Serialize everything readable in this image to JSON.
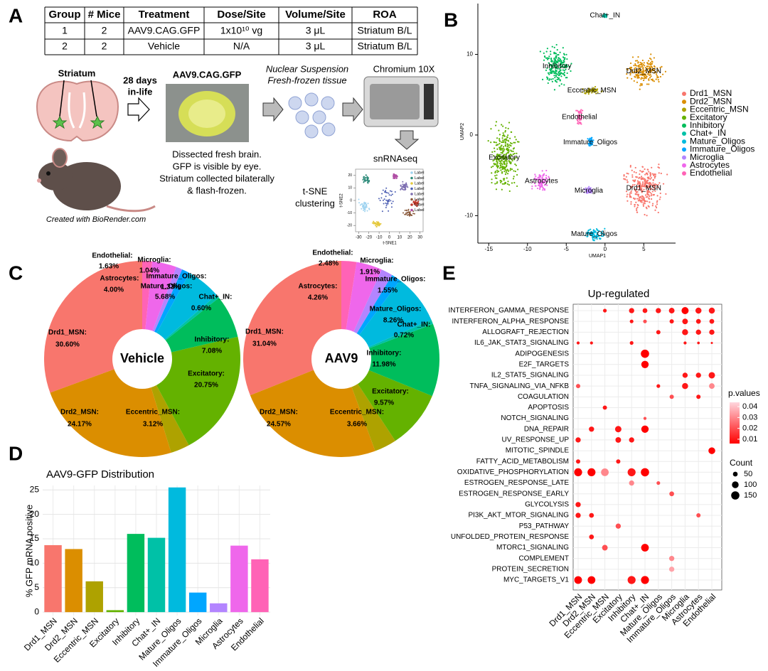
{
  "panel_labels": [
    "A",
    "B",
    "C",
    "D",
    "E"
  ],
  "table": {
    "header": [
      "Group",
      "# Mice",
      "Treatment",
      "Dose/Site",
      "Volume/Site",
      "ROA"
    ],
    "rows": [
      [
        "1",
        "2",
        "AAV9.CAG.GFP",
        "1x10¹⁰ vg",
        "3 μL",
        "Striatum B/L"
      ],
      [
        "2",
        "2",
        "Vehicle",
        "N/A",
        "3 μL",
        "Striatum B/L"
      ]
    ]
  },
  "schematic": {
    "striatum": "Striatum",
    "days": [
      "28 days",
      "in-life"
    ],
    "vector": "AAV9.CAG.GFP",
    "dissection": [
      "Dissected fresh brain.",
      "GFP is visible by eye.",
      "Striatum collected bilaterally",
      "& flash-frozen."
    ],
    "credit": "Created with BioRender.com",
    "suspension": [
      "Nuclear Suspension",
      "Fresh-frozen tissue"
    ],
    "platform": "Chromium 10X",
    "assay": "snRNAseq",
    "clustering": [
      "t-SNE",
      "clustering"
    ]
  },
  "tsne_inset": {
    "xlabel": "t-SNE1",
    "ylabel": "t-SNE2",
    "xlim": [
      -33,
      33
    ],
    "ylim": [
      -25,
      25
    ],
    "xticks": [
      -30,
      -20,
      -10,
      0,
      10,
      20,
      30
    ],
    "yticks": [
      -20,
      -10,
      0,
      10,
      20
    ],
    "legend": [
      "Label",
      "Label",
      "Label",
      "Label",
      "Label",
      "Label",
      "Label",
      "Label"
    ],
    "colors": [
      "#9fd3f0",
      "#2e8b7a",
      "#e5c93d",
      "#4d5fb3",
      "#7c6db0",
      "#8a5a3c",
      "#c0392b",
      "#b04fa5"
    ]
  },
  "chart_data": [
    {
      "type": "scatter",
      "xlabel": "UMAP1",
      "ylabel": "UMAP2",
      "xlim": [
        -16.4,
        9.1
      ],
      "ylim": [
        -13.4,
        16.3
      ],
      "xticks": [
        -15,
        -10,
        -5,
        0,
        5
      ],
      "yticks": [
        -10,
        0,
        10
      ],
      "clusters": [
        {
          "name": "Drd1_MSN",
          "color": "#F8766D",
          "x": 5,
          "y": -6.6
        },
        {
          "name": "Drd2_MSN",
          "color": "#DB8E00",
          "x": 5,
          "y": 7.9
        },
        {
          "name": "Eccentric_MSN",
          "color": "#AEA200",
          "x": -1.7,
          "y": 5.5
        },
        {
          "name": "Excitatory",
          "color": "#64B200",
          "x": -13,
          "y": -2.8
        },
        {
          "name": "Inhibitory",
          "color": "#00BD5C",
          "x": -6.2,
          "y": 8.5
        },
        {
          "name": "Chat+_IN",
          "color": "#00C1A7",
          "x": 0,
          "y": 14.8
        },
        {
          "name": "Mature_Oligos",
          "color": "#00BADE",
          "x": -1.4,
          "y": -12.3
        },
        {
          "name": "Immature_Oligos",
          "color": "#00A6FF",
          "x": -1.9,
          "y": -0.9
        },
        {
          "name": "Microglia",
          "color": "#B385FF",
          "x": -2.1,
          "y": -6.9
        },
        {
          "name": "Astrocytes",
          "color": "#EF67EB",
          "x": -8.2,
          "y": -5.7
        },
        {
          "name": "Endothelial",
          "color": "#FF63B6",
          "x": -3.3,
          "y": 2.2
        }
      ]
    },
    {
      "type": "pie",
      "title": "Vehicle",
      "labels": [
        "Drd1_MSN:",
        "Drd2_MSN:",
        "Eccentric_MSN:",
        "Excitatory:",
        "Inhibitory:",
        "Chat+_IN:",
        "Mature_Oligos:",
        "Immature_Oligos:",
        "Microglia:",
        "Astrocytes:",
        "Endothelial:"
      ],
      "values": [
        30.6,
        24.17,
        3.12,
        20.75,
        7.08,
        0.6,
        5.68,
        1.33,
        1.04,
        4.0,
        1.63
      ],
      "value_labels": [
        "30.60%",
        "24.17%",
        "3.12%",
        "20.75%",
        "7.08%",
        "0.60%",
        "5.68%",
        "1.33%",
        "1.04%",
        "4.00%",
        "1.63%"
      ],
      "colors": [
        "#F8766D",
        "#DB8E00",
        "#AEA200",
        "#64B200",
        "#00BD5C",
        "#00C1A7",
        "#00BADE",
        "#00A6FF",
        "#B385FF",
        "#EF67EB",
        "#FF63B6"
      ]
    },
    {
      "type": "pie",
      "title": "AAV9",
      "labels": [
        "Drd1_MSN:",
        "Drd2_MSN:",
        "Eccentric_MSN:",
        "Excitatory:",
        "Inhibitory:",
        "Chat+_IN:",
        "Mature_Oligos:",
        "Immature_Oligos:",
        "Microglia:",
        "Astrocytes:",
        "Endothelial:"
      ],
      "values": [
        31.04,
        24.57,
        3.66,
        9.57,
        11.98,
        0.72,
        8.26,
        1.55,
        1.91,
        4.26,
        2.48
      ],
      "value_labels": [
        "31.04%",
        "24.57%",
        "3.66%",
        "9.57%",
        "11.98%",
        "0.72%",
        "8.26%",
        "1.55%",
        "1.91%",
        "4.26%",
        "2.48%"
      ],
      "colors": [
        "#F8766D",
        "#DB8E00",
        "#AEA200",
        "#64B200",
        "#00BD5C",
        "#00C1A7",
        "#00BADE",
        "#00A6FF",
        "#B385FF",
        "#EF67EB",
        "#FF63B6"
      ]
    },
    {
      "type": "bar",
      "title": "AAV9-GFP Distribution",
      "ylabel": "% GFP mRNA positive",
      "categories": [
        "Drd1_MSN",
        "Drd2_MSN",
        "Eccentric_MSN",
        "Excitatory",
        "Inhibitory",
        "Chat+_IN",
        "Mature_Oligos",
        "Immature_Oligos",
        "Microglia",
        "Astrocytes",
        "Endothelial"
      ],
      "values": [
        13.7,
        12.9,
        6.3,
        0.4,
        16.0,
        15.2,
        25.5,
        4.0,
        1.8,
        13.6,
        10.8
      ],
      "colors": [
        "#F8766D",
        "#DB8E00",
        "#AEA200",
        "#64B200",
        "#00BD5C",
        "#00C1A7",
        "#00BADE",
        "#00A6FF",
        "#B385FF",
        "#EF67EB",
        "#FF63B6"
      ],
      "ylim": [
        -0.7,
        25.9
      ],
      "yticks": [
        0,
        5,
        10,
        15,
        20,
        25
      ],
      "grid": true
    },
    {
      "type": "dot",
      "title": "Up-regulated",
      "columns": [
        "Drd1_MSN",
        "Drd2_MSN",
        "Eccentric_MSN",
        "Excitatory",
        "Inhibitory",
        "Chat+_IN",
        "Mature_Oligos",
        "Immature_Oligos",
        "Microglia",
        "Astrocytes",
        "Endothelial"
      ],
      "rows": [
        "INTERFERON_GAMMA_RESPONSE",
        "INTERFERON_ALPHA_RESPONSE",
        "ALLOGRAFT_REJECTION",
        "IL6_JAK_STAT3_SIGNALING",
        "ADIPOGENESIS",
        "E2F_TARGETS",
        "IL2_STAT5_SIGNALING",
        "TNFA_SIGNALING_VIA_NFKB",
        "COAGULATION",
        "APOPTOSIS",
        "NOTCH_SIGNALING",
        "DNA_REPAIR",
        "UV_RESPONSE_UP",
        "MITOTIC_SPINDLE",
        "FATTY_ACID_METABOLISM",
        "OXIDATIVE_PHOSPHORYLATION",
        "ESTROGEN_RESPONSE_LATE",
        "ESTROGEN_RESPONSE_EARLY",
        "GLYCOLYSIS",
        "PI3K_AKT_MTOR_SIGNALING",
        "P53_PATHWAY",
        "UNFOLDED_PROTEIN_RESPONSE",
        "MTORC1_SIGNALING",
        "COMPLEMENT",
        "PROTEIN_SECRETION",
        "MYC_TARGETS_V1"
      ],
      "points": [
        {
          "x": "Eccentric_MSN",
          "y": "INTERFERON_GAMMA_RESPONSE",
          "count": 30,
          "p": 0.01
        },
        {
          "x": "Inhibitory",
          "y": "INTERFERON_GAMMA_RESPONSE",
          "count": 60,
          "p": 0.01
        },
        {
          "x": "Chat+_IN",
          "y": "INTERFERON_GAMMA_RESPONSE",
          "count": 50,
          "p": 0.01
        },
        {
          "x": "Mature_Oligos",
          "y": "INTERFERON_GAMMA_RESPONSE",
          "count": 60,
          "p": 0.01
        },
        {
          "x": "Immature_Oligos",
          "y": "INTERFERON_GAMMA_RESPONSE",
          "count": 70,
          "p": 0.01
        },
        {
          "x": "Microglia",
          "y": "INTERFERON_GAMMA_RESPONSE",
          "count": 110,
          "p": 0.005
        },
        {
          "x": "Astrocytes",
          "y": "INTERFERON_GAMMA_RESPONSE",
          "count": 80,
          "p": 0.01
        },
        {
          "x": "Endothelial",
          "y": "INTERFERON_GAMMA_RESPONSE",
          "count": 80,
          "p": 0.01
        },
        {
          "x": "Inhibitory",
          "y": "INTERFERON_ALPHA_RESPONSE",
          "count": 30,
          "p": 0.01
        },
        {
          "x": "Chat+_IN",
          "y": "INTERFERON_ALPHA_RESPONSE",
          "count": 30,
          "p": 0.02
        },
        {
          "x": "Immature_Oligos",
          "y": "INTERFERON_ALPHA_RESPONSE",
          "count": 40,
          "p": 0.01
        },
        {
          "x": "Microglia",
          "y": "INTERFERON_ALPHA_RESPONSE",
          "count": 70,
          "p": 0.01
        },
        {
          "x": "Astrocytes",
          "y": "INTERFERON_ALPHA_RESPONSE",
          "count": 50,
          "p": 0.01
        },
        {
          "x": "Endothelial",
          "y": "INTERFERON_ALPHA_RESPONSE",
          "count": 50,
          "p": 0.01
        },
        {
          "x": "Mature_Oligos",
          "y": "ALLOGRAFT_REJECTION",
          "count": 40,
          "p": 0.01
        },
        {
          "x": "Microglia",
          "y": "ALLOGRAFT_REJECTION",
          "count": 80,
          "p": 0.01
        },
        {
          "x": "Astrocytes",
          "y": "ALLOGRAFT_REJECTION",
          "count": 60,
          "p": 0.01
        },
        {
          "x": "Endothelial",
          "y": "ALLOGRAFT_REJECTION",
          "count": 60,
          "p": 0.01
        },
        {
          "x": "Drd1_MSN",
          "y": "IL6_JAK_STAT3_SIGNALING",
          "count": 20,
          "p": 0.01
        },
        {
          "x": "Drd2_MSN",
          "y": "IL6_JAK_STAT3_SIGNALING",
          "count": 20,
          "p": 0.01
        },
        {
          "x": "Inhibitory",
          "y": "IL6_JAK_STAT3_SIGNALING",
          "count": 30,
          "p": 0.01
        },
        {
          "x": "Microglia",
          "y": "IL6_JAK_STAT3_SIGNALING",
          "count": 20,
          "p": 0.01
        },
        {
          "x": "Astrocytes",
          "y": "IL6_JAK_STAT3_SIGNALING",
          "count": 15,
          "p": 0.01
        },
        {
          "x": "Endothelial",
          "y": "IL6_JAK_STAT3_SIGNALING",
          "count": 10,
          "p": 0.01
        },
        {
          "x": "Chat+_IN",
          "y": "ADIPOGENESIS",
          "count": 150,
          "p": 0.005
        },
        {
          "x": "Chat+_IN",
          "y": "E2F_TARGETS",
          "count": 120,
          "p": 0.005
        },
        {
          "x": "Microglia",
          "y": "IL2_STAT5_SIGNALING",
          "count": 60,
          "p": 0.01
        },
        {
          "x": "Astrocytes",
          "y": "IL2_STAT5_SIGNALING",
          "count": 60,
          "p": 0.01
        },
        {
          "x": "Endothelial",
          "y": "IL2_STAT5_SIGNALING",
          "count": 90,
          "p": 0.01
        },
        {
          "x": "Drd1_MSN",
          "y": "TNFA_SIGNALING_VIA_NFKB",
          "count": 40,
          "p": 0.02
        },
        {
          "x": "Mature_Oligos",
          "y": "TNFA_SIGNALING_VIA_NFKB",
          "count": 30,
          "p": 0.01
        },
        {
          "x": "Microglia",
          "y": "TNFA_SIGNALING_VIA_NFKB",
          "count": 80,
          "p": 0.01
        },
        {
          "x": "Endothelial",
          "y": "TNFA_SIGNALING_VIA_NFKB",
          "count": 70,
          "p": 0.03
        },
        {
          "x": "Immature_Oligos",
          "y": "COAGULATION",
          "count": 40,
          "p": 0.02
        },
        {
          "x": "Astrocytes",
          "y": "COAGULATION",
          "count": 40,
          "p": 0.01
        },
        {
          "x": "Eccentric_MSN",
          "y": "APOPTOSIS",
          "count": 40,
          "p": 0.01
        },
        {
          "x": "Chat+_IN",
          "y": "NOTCH_SIGNALING",
          "count": 20,
          "p": 0.02
        },
        {
          "x": "Drd2_MSN",
          "y": "DNA_REPAIR",
          "count": 60,
          "p": 0.01
        },
        {
          "x": "Excitatory",
          "y": "DNA_REPAIR",
          "count": 90,
          "p": 0.01
        },
        {
          "x": "Chat+_IN",
          "y": "DNA_REPAIR",
          "count": 120,
          "p": 0.005
        },
        {
          "x": "Drd1_MSN",
          "y": "UV_RESPONSE_UP",
          "count": 60,
          "p": 0.01
        },
        {
          "x": "Excitatory",
          "y": "UV_RESPONSE_UP",
          "count": 70,
          "p": 0.01
        },
        {
          "x": "Inhibitory",
          "y": "UV_RESPONSE_UP",
          "count": 60,
          "p": 0.01
        },
        {
          "x": "Endothelial",
          "y": "MITOTIC_SPINDLE",
          "count": 100,
          "p": 0.005
        },
        {
          "x": "Drd1_MSN",
          "y": "FATTY_ACID_METABOLISM",
          "count": 40,
          "p": 0.01
        },
        {
          "x": "Excitatory",
          "y": "FATTY_ACID_METABOLISM",
          "count": 40,
          "p": 0.01
        },
        {
          "x": "Drd1_MSN",
          "y": "OXIDATIVE_PHOSPHORYLATION",
          "count": 140,
          "p": 0.005
        },
        {
          "x": "Drd2_MSN",
          "y": "OXIDATIVE_PHOSPHORYLATION",
          "count": 140,
          "p": 0.005
        },
        {
          "x": "Eccentric_MSN",
          "y": "OXIDATIVE_PHOSPHORYLATION",
          "count": 130,
          "p": 0.03
        },
        {
          "x": "Inhibitory",
          "y": "OXIDATIVE_PHOSPHORYLATION",
          "count": 140,
          "p": 0.01
        },
        {
          "x": "Chat+_IN",
          "y": "OXIDATIVE_PHOSPHORYLATION",
          "count": 150,
          "p": 0.005
        },
        {
          "x": "Inhibitory",
          "y": "ESTROGEN_RESPONSE_LATE",
          "count": 60,
          "p": 0.03
        },
        {
          "x": "Mature_Oligos",
          "y": "ESTROGEN_RESPONSE_LATE",
          "count": 30,
          "p": 0.02
        },
        {
          "x": "Immature_Oligos",
          "y": "ESTROGEN_RESPONSE_EARLY",
          "count": 50,
          "p": 0.02
        },
        {
          "x": "Drd1_MSN",
          "y": "GLYCOLYSIS",
          "count": 60,
          "p": 0.01
        },
        {
          "x": "Drd1_MSN",
          "y": "PI3K_AKT_MTOR_SIGNALING",
          "count": 60,
          "p": 0.01
        },
        {
          "x": "Drd2_MSN",
          "y": "PI3K_AKT_MTOR_SIGNALING",
          "count": 50,
          "p": 0.01
        },
        {
          "x": "Astrocytes",
          "y": "PI3K_AKT_MTOR_SIGNALING",
          "count": 40,
          "p": 0.02
        },
        {
          "x": "Excitatory",
          "y": "P53_PATHWAY",
          "count": 60,
          "p": 0.02
        },
        {
          "x": "Drd2_MSN",
          "y": "UNFOLDED_PROTEIN_RESPONSE",
          "count": 50,
          "p": 0.01
        },
        {
          "x": "Eccentric_MSN",
          "y": "MTORC1_SIGNALING",
          "count": 70,
          "p": 0.02
        },
        {
          "x": "Chat+_IN",
          "y": "MTORC1_SIGNALING",
          "count": 130,
          "p": 0.005
        },
        {
          "x": "Immature_Oligos",
          "y": "COMPLEMENT",
          "count": 60,
          "p": 0.03
        },
        {
          "x": "Immature_Oligos",
          "y": "PROTEIN_SECRETION",
          "count": 60,
          "p": 0.035
        },
        {
          "x": "Drd1_MSN",
          "y": "MYC_TARGETS_V1",
          "count": 130,
          "p": 0.005
        },
        {
          "x": "Drd2_MSN",
          "y": "MYC_TARGETS_V1",
          "count": 130,
          "p": 0.005
        },
        {
          "x": "Inhibitory",
          "y": "MYC_TARGETS_V1",
          "count": 140,
          "p": 0.01
        },
        {
          "x": "Chat+_IN",
          "y": "MYC_TARGETS_V1",
          "count": 140,
          "p": 0.005
        }
      ],
      "color_title": "p.values",
      "color_lim": [
        0.006,
        0.044
      ],
      "color_ticks": [
        0.04,
        0.03,
        0.02,
        0.01
      ],
      "colors": [
        "#FF0000",
        "#FFD6DE"
      ],
      "size_title": "Count",
      "size_lim": [
        0,
        150
      ],
      "size_ticks": [
        50,
        100,
        150
      ]
    }
  ]
}
